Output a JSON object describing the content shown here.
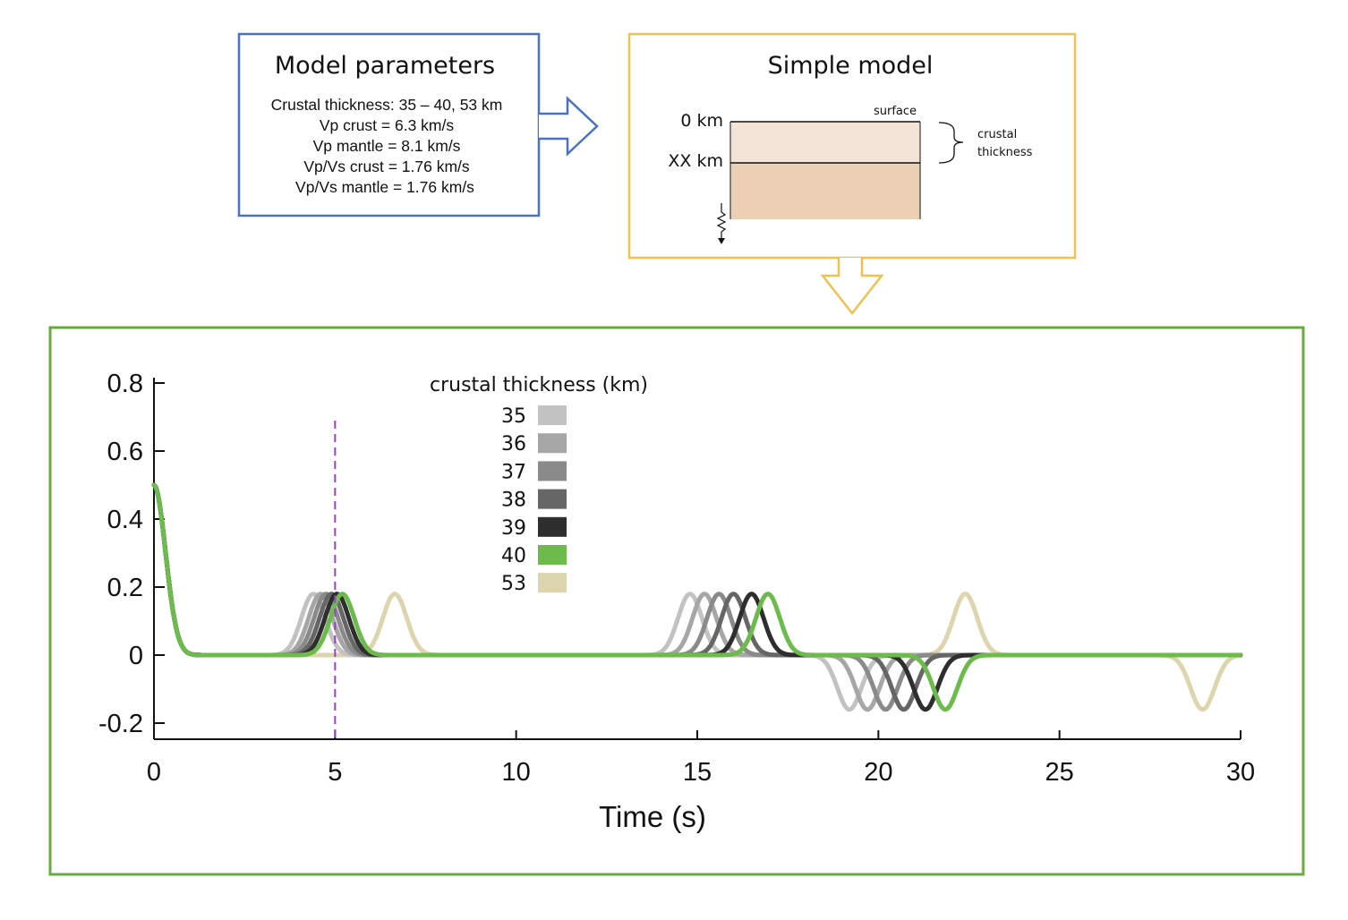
{
  "model_parameters": {
    "title": "Model parameters",
    "lines": [
      "Crustal thickness: 35 – 40, 53 km",
      "Vp crust = 6.3 km/s",
      "Vp mantle = 8.1 km/s",
      "Vp/Vs crust = 1.76 km/s",
      "Vp/Vs mantle = 1.76 km/s"
    ],
    "border_color": "#4a72c4"
  },
  "simple_model": {
    "title": "Simple model",
    "depth_top": "0 km",
    "depth_interface": "XX km",
    "surface_label": "surface",
    "brace_label_1": "crustal",
    "brace_label_2": "thickness",
    "crust_color": "#f4e4d7",
    "mantle_color": "#ecd0b6",
    "border_color": "#f0c050"
  },
  "chart_panel_border_color": "#6aa842",
  "chart_data": {
    "type": "line",
    "xlabel": "Time (s)",
    "ylabel": "",
    "xlim": [
      0,
      30
    ],
    "ylim": [
      -0.25,
      0.8
    ],
    "xticks": [
      0,
      5,
      10,
      15,
      20,
      25,
      30
    ],
    "xtick_labels": [
      "0",
      "5",
      "10",
      "15",
      "20",
      "25",
      "30"
    ],
    "yticks": [
      -0.2,
      0,
      0.2,
      0.4,
      0.6,
      0.8
    ],
    "ytick_labels": [
      "-0.2",
      "0",
      "0.2",
      "0.4",
      "0.6",
      "0.8"
    ],
    "vline_x": 5,
    "vline_color": "#9b40c8",
    "legend_title": "crustal thickness (km)",
    "legend_placement": "top-center",
    "series": [
      {
        "name": "35",
        "color": "#c2c2c2",
        "peaks": [
          [
            4.4,
            0.18
          ],
          [
            14.8,
            0.18
          ],
          [
            19.2,
            -0.16
          ]
        ]
      },
      {
        "name": "36",
        "color": "#a6a6a6",
        "peaks": [
          [
            4.6,
            0.18
          ],
          [
            15.2,
            0.18
          ],
          [
            19.7,
            -0.16
          ]
        ]
      },
      {
        "name": "37",
        "color": "#8a8a8a",
        "peaks": [
          [
            4.75,
            0.18
          ],
          [
            15.6,
            0.18
          ],
          [
            20.2,
            -0.16
          ]
        ]
      },
      {
        "name": "38",
        "color": "#666666",
        "peaks": [
          [
            4.9,
            0.18
          ],
          [
            16.0,
            0.18
          ],
          [
            20.7,
            -0.16
          ]
        ]
      },
      {
        "name": "39",
        "color": "#2e2e2e",
        "peaks": [
          [
            5.05,
            0.18
          ],
          [
            16.5,
            0.18
          ],
          [
            21.3,
            -0.16
          ]
        ]
      },
      {
        "name": "40",
        "color": "#6cbb4c",
        "peaks": [
          [
            5.2,
            0.18
          ],
          [
            16.95,
            0.18
          ],
          [
            21.85,
            -0.16
          ]
        ]
      },
      {
        "name": "53",
        "color": "#ddd5ad",
        "peaks": [
          [
            6.65,
            0.18
          ],
          [
            22.4,
            0.18
          ],
          [
            28.95,
            -0.16
          ]
        ]
      }
    ]
  }
}
